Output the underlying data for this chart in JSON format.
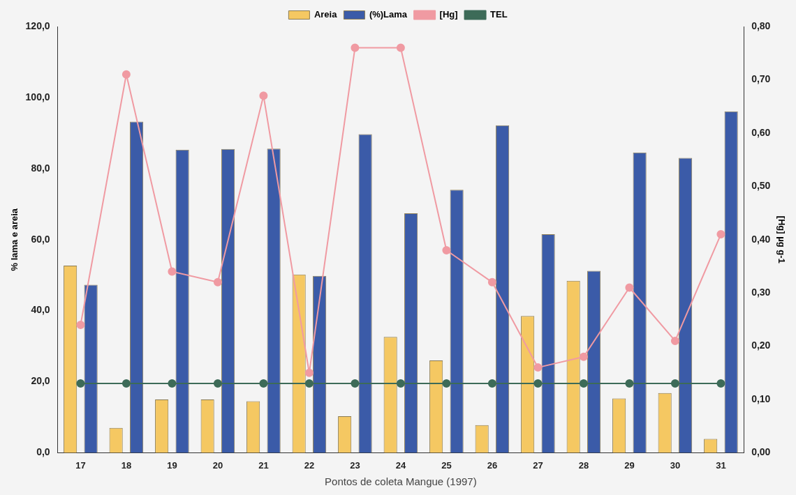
{
  "chart_data": {
    "type": "bar",
    "xlabel": "Pontos de coleta Mangue (1997)",
    "ylabel": "% lama e areia",
    "y2label": "[Hg] µg g-1",
    "categories": [
      "17",
      "18",
      "19",
      "20",
      "21",
      "22",
      "23",
      "24",
      "25",
      "26",
      "27",
      "28",
      "29",
      "30",
      "31"
    ],
    "series": [
      {
        "name": "Areia",
        "color": "#f5c862",
        "values": [
          52.7,
          7.0,
          15.0,
          15.0,
          14.5,
          50.2,
          10.3,
          32.6,
          26.0,
          7.8,
          38.5,
          48.4,
          15.3,
          16.8,
          3.9
        ]
      },
      {
        "name": "(%)Lama",
        "color": "#3b5ba8",
        "values": [
          47.3,
          93.2,
          85.3,
          85.5,
          85.6,
          49.8,
          89.7,
          67.4,
          74.0,
          92.2,
          61.5,
          51.2,
          84.5,
          83.0,
          96.1
        ]
      },
      {
        "name": "[Hg]",
        "type": "line",
        "axis": "y2",
        "color": "#f09aa2",
        "values": [
          0.24,
          0.71,
          0.34,
          0.32,
          0.67,
          0.15,
          0.76,
          0.76,
          0.38,
          0.32,
          0.16,
          0.18,
          0.31,
          0.21,
          0.41
        ]
      },
      {
        "name": "TEL",
        "type": "line",
        "axis": "y2",
        "color": "#3d6b58",
        "values": [
          0.13,
          0.13,
          0.13,
          0.13,
          0.13,
          0.13,
          0.13,
          0.13,
          0.13,
          0.13,
          0.13,
          0.13,
          0.13,
          0.13,
          0.13
        ]
      }
    ],
    "ylim": [
      0,
      120
    ],
    "yticks": [
      {
        "value": 0,
        "label": "0,0"
      },
      {
        "value": 20,
        "label": "20,0"
      },
      {
        "value": 40,
        "label": "40,0"
      },
      {
        "value": 60,
        "label": "60,0"
      },
      {
        "value": 80,
        "label": "80,0"
      },
      {
        "value": 100,
        "label": "100,0"
      },
      {
        "value": 120,
        "label": "120,0"
      }
    ],
    "y2lim": [
      0,
      0.8
    ],
    "y2ticks": [
      {
        "value": 0,
        "label": "0,00"
      },
      {
        "value": 0.1,
        "label": "0,10"
      },
      {
        "value": 0.2,
        "label": "0,20"
      },
      {
        "value": 0.3,
        "label": "0,30"
      },
      {
        "value": 0.4,
        "label": "0,40"
      },
      {
        "value": 0.5,
        "label": "0,50"
      },
      {
        "value": 0.6,
        "label": "0,60"
      },
      {
        "value": 0.7,
        "label": "0,70"
      },
      {
        "value": 0.8,
        "label": "0,80"
      }
    ],
    "legend": "top",
    "grid": false,
    "marker": "circle",
    "line_style": "solid"
  }
}
